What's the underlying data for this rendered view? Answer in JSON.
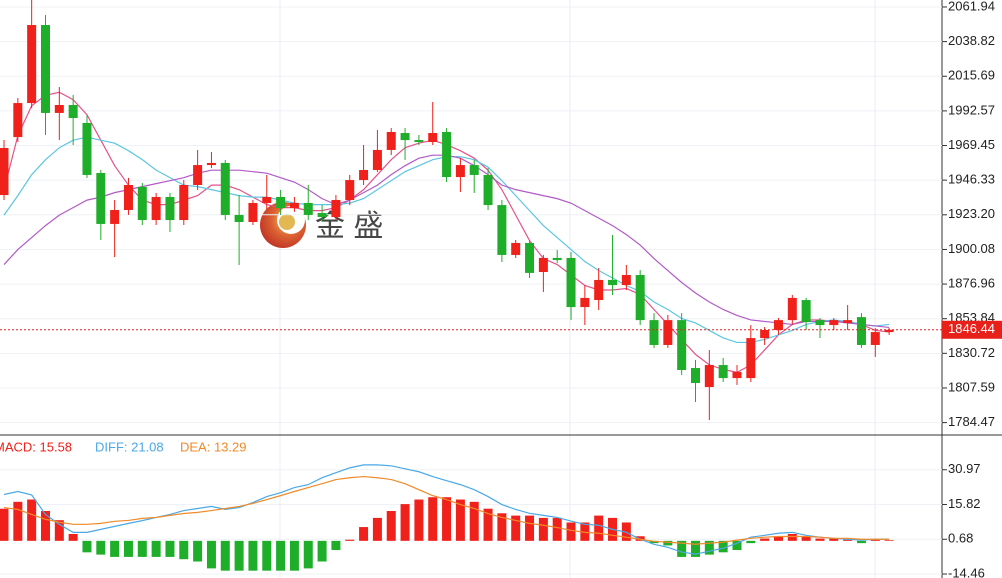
{
  "chart_data": [
    {
      "type": "candlestick",
      "open": [
        1936.4,
        1975.1,
        1997.8,
        2049.9,
        1991.2,
        1996.5,
        1984.5,
        1951.1,
        1917.1,
        1926.4,
        1941.8,
        1919.7,
        1935.1,
        1919.7,
        1943.1,
        1956.4,
        1957.8,
        1923.1,
        1918.4,
        1931.1,
        1935.1,
        1927.7,
        1931.1,
        1924.4,
        1921.7,
        1933.1,
        1946.4,
        1953.1,
        1966.5,
        1977.8,
        1973.1,
        1971.8,
        1978.5,
        1948.4,
        1956.4,
        1949.8,
        1929.7,
        1896.4,
        1904.4,
        1885.0,
        1894.4,
        1894.4,
        1861.6,
        1866.3,
        1879.7,
        1876.3,
        1883.0,
        1852.9,
        1836.3,
        1852.9,
        1820.9,
        1808.2,
        1822.9,
        1814.2,
        1814.2,
        1840.9,
        1846.3,
        1852.9,
        1866.3,
        1852.9,
        1849.6,
        1850.9,
        1854.9,
        1836.3,
        1844.9
      ],
      "high": [
        1973.1,
        2001.2,
        2066.6,
        2056.6,
        2008.5,
        2003.2,
        1989.8,
        1953.1,
        1933.1,
        1947.8,
        1944.4,
        1937.8,
        1937.8,
        1946.4,
        1966.5,
        1965.1,
        1959.8,
        1936.4,
        1933.1,
        1949.8,
        1939.8,
        1935.1,
        1943.1,
        1929.7,
        1936.4,
        1949.8,
        1969.8,
        1979.8,
        1981.1,
        1981.1,
        1976.5,
        1998.5,
        1981.1,
        1961.1,
        1959.8,
        1954.4,
        1933.1,
        1906.4,
        1906.4,
        1896.4,
        1899.7,
        1898.4,
        1876.3,
        1887.7,
        1909.7,
        1889.7,
        1886.3,
        1857.6,
        1856.3,
        1857.6,
        1826.3,
        1832.9,
        1827.6,
        1822.9,
        1849.6,
        1848.3,
        1854.3,
        1869.7,
        1867.7,
        1854.3,
        1854.3,
        1863.0,
        1857.6,
        1847.6,
        1847.6
      ],
      "low": [
        1933.1,
        1971.8,
        1994.5,
        1976.5,
        1973.1,
        1969.8,
        1947.8,
        1906.4,
        1895.0,
        1923.1,
        1916.4,
        1916.4,
        1911.7,
        1916.4,
        1939.8,
        1954.4,
        1919.7,
        1889.7,
        1916.4,
        1926.4,
        1923.1,
        1925.1,
        1919.7,
        1918.4,
        1919.7,
        1929.7,
        1943.1,
        1951.8,
        1963.1,
        1959.8,
        1969.8,
        1969.8,
        1945.1,
        1938.4,
        1937.8,
        1926.4,
        1891.7,
        1894.4,
        1881.0,
        1871.7,
        1891.0,
        1852.9,
        1849.6,
        1859.6,
        1869.7,
        1873.0,
        1849.6,
        1834.3,
        1834.3,
        1816.3,
        1798.2,
        1786.2,
        1811.6,
        1809.6,
        1811.6,
        1836.3,
        1843.0,
        1849.6,
        1846.3,
        1840.9,
        1846.3,
        1846.3,
        1834.3,
        1828.3,
        1843.0
      ],
      "close": [
        1967.8,
        1997.8,
        2049.9,
        1991.2,
        1996.5,
        1987.8,
        1949.8,
        1917.1,
        1926.4,
        1943.1,
        1919.7,
        1935.1,
        1919.7,
        1943.1,
        1956.4,
        1957.8,
        1923.1,
        1918.4,
        1931.1,
        1935.1,
        1927.7,
        1931.1,
        1923.1,
        1921.7,
        1933.1,
        1946.4,
        1953.1,
        1966.5,
        1978.5,
        1973.1,
        1971.8,
        1977.8,
        1948.4,
        1956.4,
        1949.8,
        1929.7,
        1896.4,
        1904.4,
        1884.4,
        1894.4,
        1893.0,
        1861.6,
        1867.7,
        1879.7,
        1876.3,
        1883.0,
        1852.9,
        1836.3,
        1852.9,
        1819.6,
        1810.9,
        1822.9,
        1814.2,
        1818.3,
        1840.9,
        1846.3,
        1852.9,
        1867.7,
        1851.6,
        1849.6,
        1852.9,
        1852.9,
        1836.3,
        1844.9,
        1846.4
      ],
      "up_color": "#f0201a",
      "down_color": "#1fae2a",
      "series": [
        {
          "color": "#e4528a",
          "values": [
            1940,
            1976,
            1996,
            2003,
            2005,
            2000,
            1990,
            1973,
            1956,
            1943,
            1933,
            1930,
            1930,
            1933,
            1936,
            1943,
            1943,
            1940,
            1935,
            1930,
            1928,
            1928,
            1926,
            1926,
            1928,
            1933,
            1940,
            1950,
            1960,
            1968,
            1971,
            1973,
            1970,
            1966,
            1961,
            1953,
            1940,
            1923,
            1906,
            1894,
            1890,
            1883,
            1876,
            1873,
            1873,
            1874,
            1870,
            1860,
            1850,
            1840,
            1830,
            1823,
            1820,
            1818,
            1823,
            1833,
            1843,
            1850,
            1853,
            1853,
            1852,
            1852,
            1850,
            1846,
            1845
          ]
        },
        {
          "color": "#5cc6e2",
          "values": [
            1923,
            1936,
            1950,
            1960,
            1968,
            1973,
            1975,
            1973,
            1971,
            1966,
            1960,
            1953,
            1948,
            1943,
            1942,
            1940,
            1938,
            1936,
            1935,
            1935,
            1933,
            1931,
            1930,
            1930,
            1930,
            1931,
            1934,
            1940,
            1946,
            1952,
            1956,
            1960,
            1962,
            1962,
            1960,
            1955,
            1946,
            1936,
            1926,
            1916,
            1908,
            1900,
            1892,
            1886,
            1881,
            1876,
            1872,
            1865,
            1860,
            1854,
            1851,
            1846,
            1841,
            1838,
            1838,
            1840,
            1843,
            1846,
            1850,
            1852,
            1853,
            1852,
            1850,
            1849,
            1850
          ]
        },
        {
          "color": "#b25ac8",
          "values": [
            1890,
            1900,
            1908,
            1916,
            1923,
            1928,
            1933,
            1935,
            1938,
            1940,
            1942,
            1944,
            1946,
            1948,
            1951,
            1953,
            1953,
            1953,
            1952,
            1951,
            1948,
            1945,
            1940,
            1934,
            1930,
            1933,
            1938,
            1943,
            1950,
            1956,
            1961,
            1963,
            1963,
            1961,
            1956,
            1950,
            1943,
            1940,
            1938,
            1936,
            1934,
            1931,
            1926,
            1921,
            1916,
            1910,
            1903,
            1894,
            1886,
            1878,
            1871,
            1865,
            1860,
            1856,
            1853,
            1852,
            1851,
            1850,
            1852,
            1852,
            1852,
            1851,
            1850,
            1849,
            1848
          ]
        }
      ],
      "ylim": [
        1778.2,
        2066.6
      ],
      "yticks": [
        2061.94,
        2038.82,
        2015.69,
        1992.57,
        1969.45,
        1946.33,
        {
          "value": 1923.2,
          "label": "1923.20"
        },
        1900.08,
        1876.96,
        1853.84,
        1830.72,
        1807.59,
        1784.47
      ],
      "grid": true,
      "last_price": {
        "value": 1846.44,
        "label": "1846.44"
      },
      "watermark": "金 盛"
    },
    {
      "type": "macd",
      "series": [
        {
          "name": "MACD: 15.58",
          "color": "#f0201a",
          "down_color": "#1fae2a",
          "values": [
            14,
            17,
            18,
            13,
            9,
            3,
            -5,
            -6,
            -7,
            -7,
            -7,
            -7,
            -7,
            -8,
            -9,
            -12,
            -13,
            -13,
            -13,
            -13,
            -13,
            -13,
            -12,
            -9,
            -4,
            0.5,
            6,
            10,
            13,
            16,
            18,
            19,
            19,
            18,
            17,
            14,
            12,
            11,
            11,
            10,
            10,
            8,
            8,
            11,
            10,
            8,
            2,
            -1,
            -2,
            -7,
            -7,
            -6,
            -5,
            -4,
            -1,
            1,
            2,
            3,
            2,
            1,
            1,
            0.5,
            -1,
            0.5,
            0.3
          ]
        },
        {
          "name": "DIFF: 21.08",
          "color": "#4aa8e8",
          "values": [
            20.2,
            21.5,
            20,
            11.5,
            7.2,
            3.7,
            3.7,
            5,
            6.3,
            7.6,
            8.8,
            10.2,
            11.5,
            13.2,
            14.1,
            15,
            13.7,
            14.5,
            16.7,
            19.3,
            21,
            23.2,
            24.5,
            27.5,
            29.7,
            31.8,
            33.1,
            33.1,
            32.7,
            31.4,
            30.1,
            28,
            26.2,
            24.5,
            22.3,
            19.3,
            15.8,
            13.7,
            12,
            11.1,
            10.2,
            8.6,
            7.2,
            6.8,
            5,
            3.7,
            0.7,
            -1.5,
            -2.8,
            -4.9,
            -5.8,
            -4.5,
            -3.2,
            -1,
            1.6,
            2.4,
            3.3,
            3.7,
            2.4,
            1.6,
            1.1,
            0.7,
            0.3,
            0.7,
            0.7
          ]
        },
        {
          "name": "DEA: 13.29",
          "color": "#f08a2a",
          "values": [
            14.5,
            13.7,
            11.5,
            9.4,
            8.1,
            7.2,
            7.2,
            7.6,
            8.5,
            8.9,
            9.8,
            10.2,
            11.1,
            11.9,
            12.4,
            13.2,
            14.1,
            15,
            16.3,
            18,
            19.7,
            21.5,
            23.2,
            24.9,
            26.7,
            27.5,
            28,
            27.5,
            26.7,
            24.9,
            22.3,
            19.7,
            18,
            15.8,
            14.1,
            11.9,
            10.2,
            8.9,
            7.6,
            6.8,
            5.8,
            4.6,
            3.7,
            3.3,
            2.4,
            1.6,
            0.7,
            -0.2,
            -0.6,
            -1,
            -1.5,
            -1,
            -0.6,
            0.3,
            1.1,
            1.6,
            1.9,
            1.9,
            1.9,
            1.6,
            1.1,
            1.1,
            0.7,
            0.7,
            0.7
          ]
        }
      ],
      "ylim": [
        -16.19,
        45.68
      ],
      "yticks": [
        30.97,
        15.82,
        0.68,
        -14.46
      ],
      "grid": true
    }
  ]
}
